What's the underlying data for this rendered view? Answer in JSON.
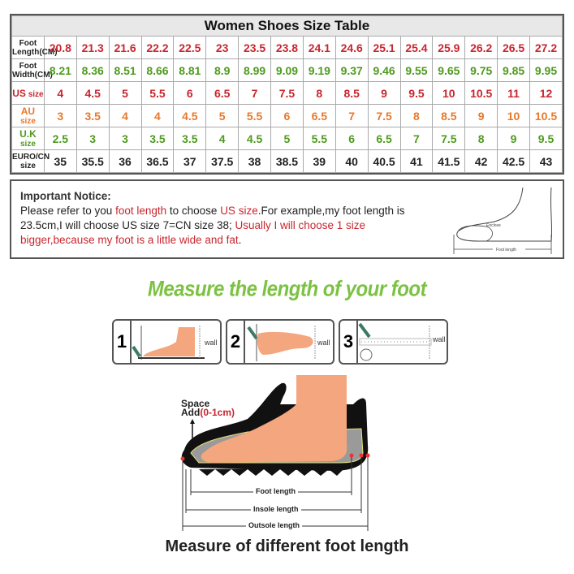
{
  "table": {
    "title": "Women Shoes Size Table",
    "rows": [
      {
        "label": "Foot Length(CM)",
        "color": "#c8262e",
        "values": [
          "20.8",
          "21.3",
          "21.6",
          "22.2",
          "22.5",
          "23",
          "23.5",
          "23.8",
          "24.1",
          "24.6",
          "25.1",
          "25.4",
          "25.9",
          "26.2",
          "26.5",
          "27.2"
        ]
      },
      {
        "label": "Foot Width(CM)",
        "color": "#4f9a1f",
        "values": [
          "8.21",
          "8.36",
          "8.51",
          "8.66",
          "8.81",
          "8.9",
          "8.99",
          "9.09",
          "9.19",
          "9.37",
          "9.46",
          "9.55",
          "9.65",
          "9.75",
          "9.85",
          "9.95"
        ]
      },
      {
        "label": "US",
        "label_suffix": "size",
        "color": "#c8262e",
        "values": [
          "4",
          "4.5",
          "5",
          "5.5",
          "6",
          "6.5",
          "7",
          "7.5",
          "8",
          "8.5",
          "9",
          "9.5",
          "10",
          "10.5",
          "11",
          "12"
        ]
      },
      {
        "label": "AU",
        "label_suffix": "size",
        "color": "#e8782a",
        "values": [
          "3",
          "3.5",
          "4",
          "4",
          "4.5",
          "5",
          "5.5",
          "6",
          "6.5",
          "7",
          "7.5",
          "8",
          "8.5",
          "9",
          "10",
          "10.5"
        ]
      },
      {
        "label": "U.K",
        "label_suffix": "size",
        "color": "#4f9a1f",
        "values": [
          "2.5",
          "3",
          "3",
          "3.5",
          "3.5",
          "4",
          "4.5",
          "5",
          "5.5",
          "6",
          "6.5",
          "7",
          "7.5",
          "8",
          "9",
          "9.5"
        ]
      },
      {
        "label": "EURO/CN size",
        "color": "#222222",
        "values": [
          "35",
          "35.5",
          "36",
          "36.5",
          "37",
          "37.5",
          "38",
          "38.5",
          "39",
          "40",
          "40.5",
          "41",
          "41.5",
          "42",
          "42.5",
          "43"
        ]
      }
    ]
  },
  "notice": {
    "title": "Important Notice:",
    "p1": "Please refer to you ",
    "p2": "foot length",
    "p3": " to choose ",
    "p4": "US size",
    "p5": ".For example,my foot length is 23.5cm,I will choose US size 7=CN size 38; ",
    "p6": "Usually I will choose 1 size bigger,because my foot is a little wide and fat",
    "p7": ".",
    "diagram_enclose": "Enclose",
    "diagram_foot_length": "Foot length"
  },
  "heading": "Measure the length of your foot",
  "steps": [
    {
      "num": "1",
      "wall": "wall"
    },
    {
      "num": "2",
      "wall": "wall"
    },
    {
      "num": "3",
      "wall": "wall"
    }
  ],
  "shoe": {
    "space": "Space",
    "add": "Add",
    "add_range": "(0-1cm)",
    "foot_length": "Foot length",
    "insole_length": "Insole length",
    "outsole_length": "Outsole length"
  },
  "bottom_title": "Measure of different foot length",
  "colors": {
    "red": "#c8262e",
    "green": "#4f9a1f",
    "orange": "#e8782a",
    "heading_green": "#7cc242",
    "skin": "#f4a77e"
  }
}
